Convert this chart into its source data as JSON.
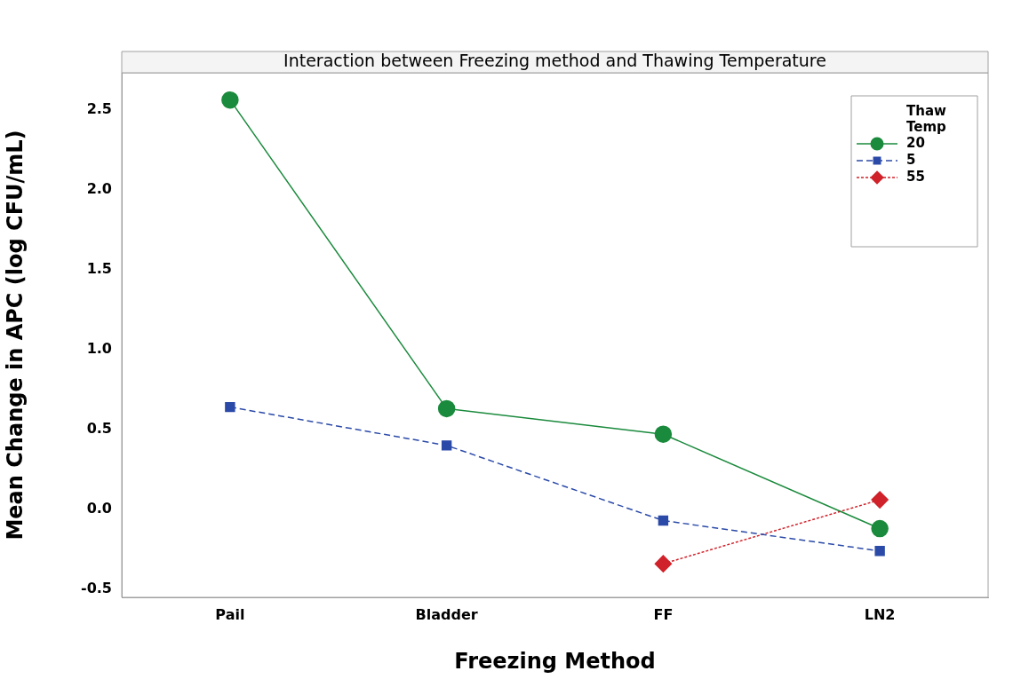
{
  "chart_data": {
    "type": "line",
    "title": "Interaction between Freezing method and Thawing Temperature",
    "xlabel": "Freezing Method",
    "ylabel": "Mean Change in APC (log CFU/mL)",
    "legend_title": "Thaw Temp",
    "legend": "top right",
    "grid": false,
    "categories": [
      "Pail",
      "Bladder",
      "FF",
      "LN2"
    ],
    "ylim": [
      -0.55,
      2.73
    ],
    "yticks": [
      -0.5,
      {
        "value": 0,
        "label": "0.0"
      },
      0.5,
      {
        "value": 1,
        "label": "1.0"
      },
      1.5,
      {
        "value": 2,
        "label": "2.0"
      },
      2.5
    ],
    "series": [
      {
        "name": "20",
        "color": "#1a8a3c",
        "marker": "circle",
        "line_style": "solid",
        "values": [
          2.56,
          0.63,
          0.47,
          -0.12
        ]
      },
      {
        "name": "5",
        "color": "#2b4aa8",
        "marker": "square",
        "line_style": "dashed",
        "values": [
          0.64,
          0.4,
          -0.07,
          -0.26
        ]
      },
      {
        "name": "55",
        "color": "#d0222a",
        "marker": "diamond",
        "line_style": "dotted",
        "values": [
          null,
          null,
          -0.34,
          0.06
        ]
      }
    ]
  }
}
